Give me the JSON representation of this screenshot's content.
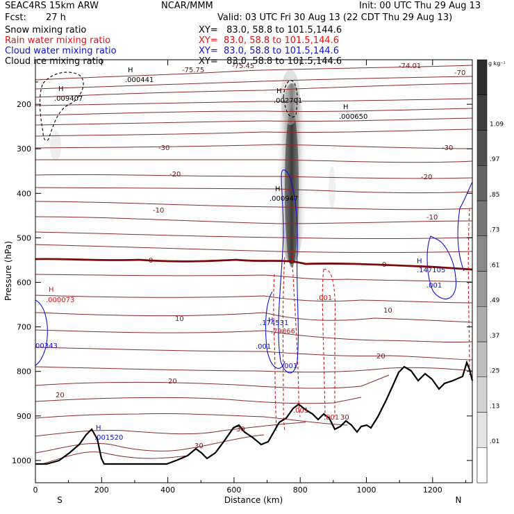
{
  "header": {
    "model": "SEAC4RS 15km ARW",
    "center": "NCAR/MMM",
    "init": "Init: 00 UTC Thu 29 Aug 13",
    "fcst_label": "Fcst:",
    "fcst_value": "27 h",
    "valid": "Valid: 03 UTC Fri 30 Aug 13 (22 CDT Thu 29 Aug 13)"
  },
  "fields": [
    {
      "name": "Snow mixing ratio",
      "xy": "XY=   83.0, 58.8 to 101.5,144.6",
      "color": "#000000"
    },
    {
      "name": "Rain water mixing ratio",
      "xy": "XY=  83.0, 58.8 to 101.5,144.6",
      "color": "#e01010"
    },
    {
      "name": "Cloud water mixing ratio",
      "xy": "XY=  83.0, 58.8 to 101.5,144.6",
      "color": "#1010d0"
    },
    {
      "name": "Cloud ice mixing ratio",
      "xy": "XY=   83.0, 58.8 to 101.5,144.6",
      "color": "#000000"
    }
  ],
  "chart_data": {
    "type": "cross-section",
    "ylabel": "Pressure (hPa)",
    "xlabel": "Distance (km)",
    "x_ticks": [
      "0",
      "200",
      "400",
      "600",
      "800",
      "1000",
      "1200"
    ],
    "y_ticks": [
      "200",
      "300",
      "400",
      "500",
      "600",
      "700",
      "800",
      "900",
      "1000"
    ],
    "x_end_labels": {
      "left": "S",
      "right": "N"
    },
    "xlim": [
      0,
      1320
    ],
    "ylim": [
      1050,
      100
    ],
    "colorbar": {
      "unit": "g kg⁻¹",
      "labels": [
        "1.09",
        ".97",
        ".85",
        ".73",
        ".61",
        ".49",
        ".37",
        ".25",
        ".13",
        ".01"
      ]
    },
    "temperature_contours": [
      {
        "label": "-75.75"
      },
      {
        "label": "-75.45"
      },
      {
        "label": "-74.01"
      },
      {
        "label": "-70"
      },
      {
        "label": "-30"
      },
      {
        "label": "-30"
      },
      {
        "label": "-20"
      },
      {
        "label": "-20"
      },
      {
        "label": "-10"
      },
      {
        "label": "-10"
      },
      {
        "label": "0"
      },
      {
        "label": "0"
      },
      {
        "label": "10"
      },
      {
        "label": "10"
      },
      {
        "label": "20"
      },
      {
        "label": "20"
      },
      {
        "label": "20"
      },
      {
        "label": "30"
      },
      {
        "label": "30"
      },
      {
        "label": "30"
      }
    ],
    "maxima_labels": [
      {
        "text": ".000441",
        "color": "#000000"
      },
      {
        "text": ".009407",
        "color": "#000000"
      },
      {
        "text": ".002701",
        "color": "#000000"
      },
      {
        "text": ".000650",
        "color": "#000000"
      },
      {
        "text": ".000947",
        "color": "#000000"
      },
      {
        "text": ".000073",
        "color": "#e01010"
      },
      {
        "text": ".001",
        "color": "#e01010"
      },
      {
        "text": ".001",
        "color": "#e01010"
      },
      {
        "text": ".001",
        "color": "#e01010"
      },
      {
        "text": ".79866",
        "color": "#e01010"
      },
      {
        "text": ".174531",
        "color": "#1010d0"
      },
      {
        "text": ".001",
        "color": "#1010d0"
      },
      {
        "text": ".001",
        "color": "#1010d0"
      },
      {
        "text": ".147105",
        "color": "#1010d0"
      },
      {
        "text": ".001",
        "color": "#1010d0"
      },
      {
        "text": ".001520",
        "color": "#1010d0"
      },
      {
        "text": "00343",
        "color": "#1010d0"
      }
    ],
    "pressure_markers": [
      150,
      1000
    ]
  }
}
